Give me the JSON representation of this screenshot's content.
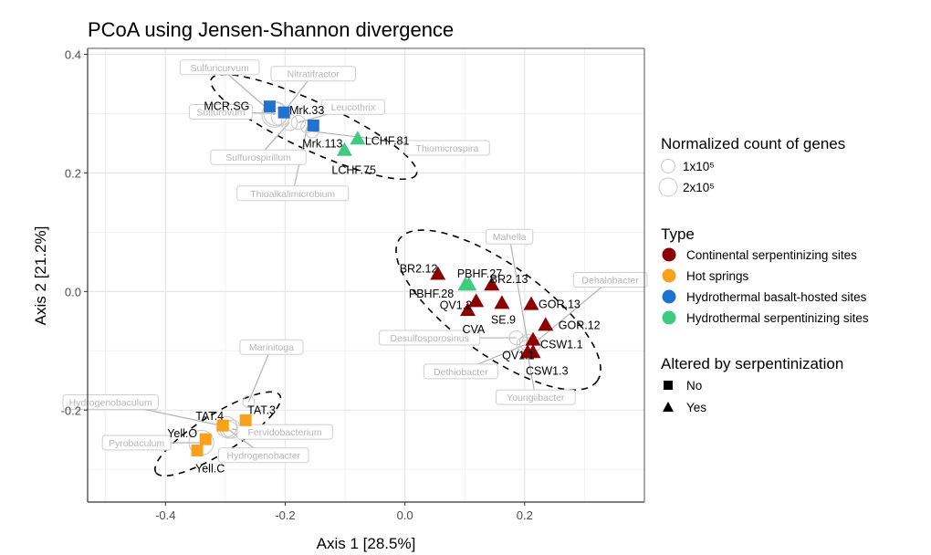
{
  "chart_data": {
    "type": "scatter",
    "title": "PCoA using Jensen-Shannon divergence",
    "xlabel": "Axis 1 [28.5%]",
    "ylabel": "Axis 2 [21.2%]",
    "xlim": [
      -0.53,
      0.4
    ],
    "ylim": [
      -0.355,
      0.41
    ],
    "xticks": [
      -0.4,
      -0.2,
      0.0,
      0.2
    ],
    "xtick_labels": [
      "-0.4",
      "-0.2",
      "0.0",
      "0.2"
    ],
    "yticks": [
      0.4,
      0.2,
      0.0,
      -0.2
    ],
    "ytick_labels": [
      "0.4",
      "0.2",
      "0.0",
      "-0.2"
    ],
    "grid": true,
    "type_colors": {
      "Continental serpentinizing sites": "#8b0000",
      "Hot springs": "#f9a11b",
      "Hydrothermal basalt-hosted sites": "#1f72cf",
      "Hydrothermal serpentinizing sites": "#3ecb80"
    },
    "points": [
      {
        "label": "MCR.SG",
        "x": -0.226,
        "y": 0.312,
        "type": "Hydrothermal basalt-hosted sites",
        "altered": "No"
      },
      {
        "label": "Mrk.33",
        "x": -0.202,
        "y": 0.302,
        "type": "Hydrothermal basalt-hosted sites",
        "altered": "No"
      },
      {
        "label": "Mrk.113",
        "x": -0.153,
        "y": 0.28,
        "type": "Hydrothermal basalt-hosted sites",
        "altered": "No"
      },
      {
        "label": "LCHF.81",
        "x": -0.079,
        "y": 0.257,
        "type": "Hydrothermal serpentinizing sites",
        "altered": "Yes"
      },
      {
        "label": "LCHF.75",
        "x": -0.101,
        "y": 0.238,
        "type": "Hydrothermal serpentinizing sites",
        "altered": "Yes"
      },
      {
        "label": "BR2.12",
        "x": 0.055,
        "y": 0.029,
        "type": "Continental serpentinizing sites",
        "altered": "Yes"
      },
      {
        "label": "PBHF.27",
        "x": 0.107,
        "y": 0.011,
        "type": "Hydrothermal serpentinizing sites",
        "altered": "Yes"
      },
      {
        "label": "PBHF.28",
        "x": 0.101,
        "y": 0.011,
        "type": "Hydrothermal serpentinizing sites",
        "altered": "Yes"
      },
      {
        "label": "BR2.13",
        "x": 0.145,
        "y": 0.011,
        "type": "Continental serpentinizing sites",
        "altered": "Yes"
      },
      {
        "label": "QV1.2",
        "x": 0.119,
        "y": -0.017,
        "type": "Continental serpentinizing sites",
        "altered": "Yes"
      },
      {
        "label": "CVA",
        "x": 0.105,
        "y": -0.032,
        "type": "Continental serpentinizing sites",
        "altered": "Yes"
      },
      {
        "label": "SE.9",
        "x": 0.162,
        "y": -0.02,
        "type": "Continental serpentinizing sites",
        "altered": "Yes"
      },
      {
        "label": "GOR.13",
        "x": 0.211,
        "y": -0.022,
        "type": "Continental serpentinizing sites",
        "altered": "Yes"
      },
      {
        "label": "GOR.12",
        "x": 0.235,
        "y": -0.057,
        "type": "Continental serpentinizing sites",
        "altered": "Yes"
      },
      {
        "label": "CSW1.1",
        "x": 0.214,
        "y": -0.082,
        "type": "Continental serpentinizing sites",
        "altered": "Yes"
      },
      {
        "label": "QV1.1",
        "x": 0.205,
        "y": -0.103,
        "type": "Continental serpentinizing sites",
        "altered": "Yes"
      },
      {
        "label": "CSW1.3",
        "x": 0.214,
        "y": -0.103,
        "type": "Continental serpentinizing sites",
        "altered": "Yes"
      },
      {
        "label": "TAT.4",
        "x": -0.304,
        "y": -0.226,
        "type": "Hot springs",
        "altered": "No"
      },
      {
        "label": "TAT.3",
        "x": -0.266,
        "y": -0.217,
        "type": "Hot springs",
        "altered": "No"
      },
      {
        "label": "Yell.O",
        "x": -0.333,
        "y": -0.249,
        "type": "Hot springs",
        "altered": "No"
      },
      {
        "label": "Yell.C",
        "x": -0.347,
        "y": -0.268,
        "type": "Hot springs",
        "altered": "No"
      }
    ],
    "taxa": [
      {
        "label": "Sulfuricurvum",
        "x": -0.218,
        "y": 0.298,
        "count_scale": 1.6
      },
      {
        "label": "Nitratifractor",
        "x": -0.208,
        "y": 0.295,
        "count_scale": 1.0
      },
      {
        "label": "Sulfurovum",
        "x": -0.216,
        "y": 0.3,
        "count_scale": 1.5
      },
      {
        "label": "Leucothrix",
        "x": -0.178,
        "y": 0.285,
        "count_scale": 0.6
      },
      {
        "label": "Sulfurospirillum",
        "x": -0.193,
        "y": 0.285,
        "count_scale": 0.8
      },
      {
        "label": "Thiomicrospira",
        "x": -0.155,
        "y": 0.27,
        "count_scale": 0.5
      },
      {
        "label": "Thioalkalimicrobium",
        "x": -0.163,
        "y": 0.278,
        "count_scale": 0.5
      },
      {
        "label": "Mahella",
        "x": 0.205,
        "y": -0.086,
        "count_scale": 0.8
      },
      {
        "label": "Dehalobacter",
        "x": 0.215,
        "y": -0.088,
        "count_scale": 0.7
      },
      {
        "label": "Desulfosporosinus",
        "x": 0.186,
        "y": -0.078,
        "count_scale": 0.6
      },
      {
        "label": "Dethiobacter",
        "x": 0.2,
        "y": -0.09,
        "count_scale": 0.8
      },
      {
        "label": "Youngiibacter",
        "x": 0.203,
        "y": -0.095,
        "count_scale": 0.7
      },
      {
        "label": "Marinitoga",
        "x": -0.261,
        "y": -0.186,
        "count_scale": 0.4
      },
      {
        "label": "Hydrogenobaculum",
        "x": -0.298,
        "y": -0.228,
        "count_scale": 1.2
      },
      {
        "label": "Fervidobacterium",
        "x": -0.289,
        "y": -0.232,
        "count_scale": 1.0
      },
      {
        "label": "Hydrogenobacter",
        "x": -0.294,
        "y": -0.233,
        "count_scale": 0.9
      },
      {
        "label": "Pyrobaculum",
        "x": -0.34,
        "y": -0.255,
        "count_scale": 1.6
      }
    ],
    "legends": {
      "size": {
        "title": "Normalized count of genes",
        "items": [
          "1x10⁵",
          "2x10⁵"
        ]
      },
      "type": {
        "title": "Type",
        "items": [
          "Continental serpentinizing sites",
          "Hot springs",
          "Hydrothermal basalt-hosted sites",
          "Hydrothermal serpentinizing sites"
        ]
      },
      "shape": {
        "title": "Altered by serpentinization",
        "items": [
          "No",
          "Yes"
        ]
      }
    },
    "legend_position": "right"
  }
}
